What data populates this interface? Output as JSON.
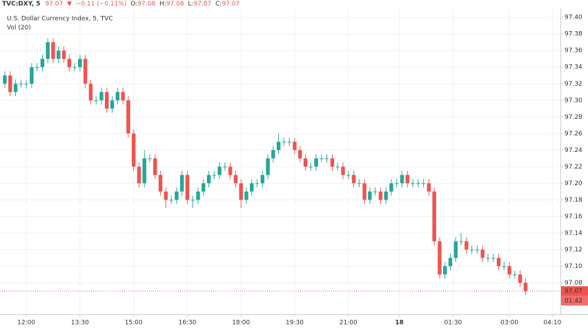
{
  "chart_data": {
    "type": "candlestick",
    "legend_header": {
      "symbol": "TVC:DXY, 5",
      "price": "97.07",
      "arrow": "▼",
      "change": "−0.11 (−0.11%)",
      "open_label": "O:",
      "open": "97.08",
      "high_label": "H:",
      "high": "97.08",
      "low_label": "L:",
      "low": "97.07",
      "close_label": "C:",
      "close": "97.07"
    },
    "title": "U.S. Dollar Currency Index, 5, TVC",
    "indicator": "Vol (20)",
    "up_color": "#26a69a",
    "down_color": "#ef5350",
    "grid": true,
    "open": [
      97.32,
      97.33,
      97.31,
      97.32,
      97.32,
      97.32,
      97.34,
      97.34,
      97.35,
      97.37,
      97.35,
      97.36,
      97.35,
      97.34,
      97.34,
      97.35,
      97.32,
      97.3,
      97.3,
      97.31,
      97.29,
      97.3,
      97.31,
      97.3,
      97.26,
      97.22,
      97.2,
      97.23,
      97.23,
      97.21,
      97.19,
      97.18,
      97.18,
      97.19,
      97.21,
      97.18,
      97.18,
      97.19,
      97.2,
      97.21,
      97.21,
      97.22,
      97.22,
      97.21,
      97.2,
      97.18,
      97.19,
      97.2,
      97.2,
      97.21,
      97.23,
      97.24,
      97.25,
      97.25,
      97.25,
      97.24,
      97.23,
      97.22,
      97.22,
      97.23,
      97.23,
      97.23,
      97.22,
      97.22,
      97.21,
      97.21,
      97.2,
      97.2,
      97.18,
      97.19,
      97.19,
      97.18,
      97.19,
      97.2,
      97.2,
      97.21,
      97.2,
      97.2,
      97.2,
      97.2,
      97.19,
      97.13,
      97.09,
      97.1,
      97.11,
      97.13,
      97.13,
      97.12,
      97.12,
      97.12,
      97.11,
      97.11,
      97.11,
      97.1,
      97.1,
      97.09,
      97.09,
      97.08
    ],
    "high": [
      97.335,
      97.335,
      97.325,
      97.325,
      97.325,
      97.345,
      97.345,
      97.355,
      97.375,
      97.375,
      97.365,
      97.365,
      97.355,
      97.345,
      97.355,
      97.355,
      97.325,
      97.305,
      97.315,
      97.315,
      97.305,
      97.315,
      97.315,
      97.305,
      97.265,
      97.225,
      97.24,
      97.235,
      97.235,
      97.215,
      97.195,
      97.185,
      97.195,
      97.215,
      97.215,
      97.185,
      97.195,
      97.205,
      97.215,
      97.215,
      97.225,
      97.225,
      97.225,
      97.215,
      97.205,
      97.195,
      97.205,
      97.205,
      97.215,
      97.235,
      97.245,
      97.26,
      97.255,
      97.255,
      97.255,
      97.245,
      97.235,
      97.225,
      97.235,
      97.235,
      97.235,
      97.235,
      97.225,
      97.225,
      97.215,
      97.215,
      97.205,
      97.205,
      97.195,
      97.195,
      97.195,
      97.195,
      97.205,
      97.205,
      97.215,
      97.215,
      97.205,
      97.205,
      97.205,
      97.205,
      97.195,
      97.135,
      97.105,
      97.115,
      97.135,
      97.14,
      97.135,
      97.125,
      97.125,
      97.125,
      97.115,
      97.115,
      97.115,
      97.105,
      97.105,
      97.095,
      97.095,
      97.085
    ],
    "low": [
      97.315,
      97.305,
      97.305,
      97.315,
      97.315,
      97.315,
      97.335,
      97.335,
      97.345,
      97.345,
      97.345,
      97.345,
      97.335,
      97.335,
      97.335,
      97.315,
      97.295,
      97.295,
      97.295,
      97.285,
      97.285,
      97.295,
      97.295,
      97.255,
      97.215,
      97.195,
      97.195,
      97.225,
      97.205,
      97.185,
      97.17,
      97.175,
      97.175,
      97.185,
      97.175,
      97.17,
      97.175,
      97.185,
      97.195,
      97.205,
      97.205,
      97.215,
      97.205,
      97.195,
      97.17,
      97.175,
      97.185,
      97.195,
      97.195,
      97.205,
      97.225,
      97.235,
      97.245,
      97.245,
      97.235,
      97.225,
      97.215,
      97.215,
      97.215,
      97.225,
      97.225,
      97.215,
      97.215,
      97.205,
      97.205,
      97.195,
      97.195,
      97.175,
      97.175,
      97.185,
      97.175,
      97.175,
      97.185,
      97.195,
      97.195,
      97.195,
      97.195,
      97.195,
      97.195,
      97.185,
      97.125,
      97.085,
      97.085,
      97.095,
      97.105,
      97.125,
      97.115,
      97.115,
      97.115,
      97.105,
      97.105,
      97.105,
      97.095,
      97.095,
      97.085,
      97.085,
      97.075,
      97.065
    ],
    "close": [
      97.33,
      97.31,
      97.32,
      97.32,
      97.32,
      97.34,
      97.34,
      97.35,
      97.37,
      97.35,
      97.36,
      97.35,
      97.34,
      97.34,
      97.35,
      97.32,
      97.3,
      97.3,
      97.31,
      97.29,
      97.3,
      97.31,
      97.3,
      97.26,
      97.22,
      97.2,
      97.23,
      97.23,
      97.21,
      97.19,
      97.18,
      97.18,
      97.19,
      97.21,
      97.18,
      97.18,
      97.19,
      97.2,
      97.21,
      97.21,
      97.22,
      97.22,
      97.21,
      97.2,
      97.18,
      97.19,
      97.2,
      97.2,
      97.21,
      97.23,
      97.24,
      97.25,
      97.25,
      97.25,
      97.24,
      97.23,
      97.22,
      97.22,
      97.23,
      97.23,
      97.23,
      97.22,
      97.22,
      97.21,
      97.21,
      97.2,
      97.2,
      97.18,
      97.19,
      97.19,
      97.18,
      97.19,
      97.2,
      97.2,
      97.21,
      97.2,
      97.2,
      97.2,
      97.2,
      97.19,
      97.13,
      97.09,
      97.1,
      97.11,
      97.13,
      97.13,
      97.12,
      97.12,
      97.12,
      97.11,
      97.11,
      97.11,
      97.1,
      97.1,
      97.09,
      97.09,
      97.08,
      97.07
    ],
    "xlim": [
      -0.9,
      103.5
    ],
    "xticks": [
      {
        "value": 4,
        "label": "12:00"
      },
      {
        "value": 14,
        "label": "13:30"
      },
      {
        "value": 24,
        "label": "15:00"
      },
      {
        "value": 34,
        "label": "16:30"
      },
      {
        "value": 44,
        "label": "18:00"
      },
      {
        "value": 54,
        "label": "19:30"
      },
      {
        "value": 64,
        "label": "21:00"
      },
      {
        "value": 73.5,
        "label": "18"
      },
      {
        "value": 83.5,
        "label": "01:30"
      },
      {
        "value": 94,
        "label": "03:00"
      },
      {
        "value": 102,
        "label": "04:10"
      }
    ],
    "ylim": [
      97.042,
      97.421
    ],
    "yticks": [
      97.08,
      {
        "value": 97.1,
        "label": "97.10"
      },
      97.12,
      97.14,
      97.16,
      97.18,
      {
        "value": 97.2,
        "label": "97.20"
      },
      97.22,
      97.24,
      97.26,
      97.28,
      {
        "value": 97.3,
        "label": "97.30"
      },
      97.32,
      97.34,
      97.36,
      97.38,
      {
        "value": 97.4,
        "label": "97.40"
      }
    ],
    "last_price": 97.07,
    "countdown": "01:42"
  }
}
